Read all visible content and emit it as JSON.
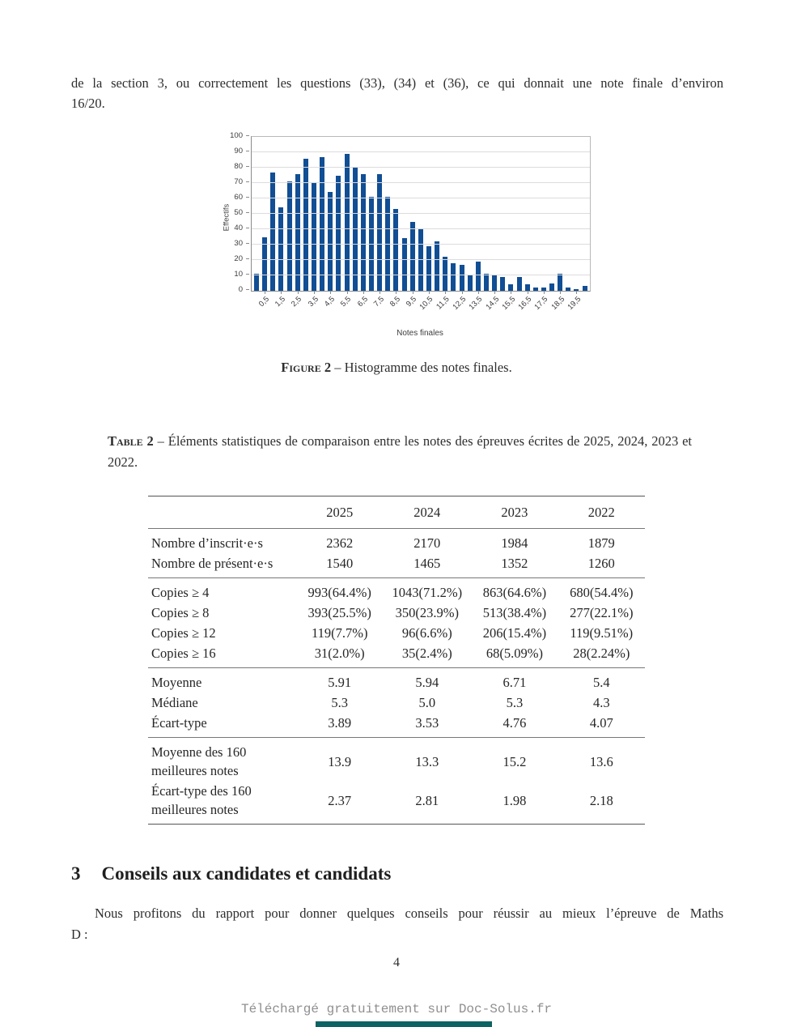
{
  "intro": {
    "lines": [
      "de la section 3, ou correctement les questions (33), (34) et (36), ce qui donnait une note finale d’environ",
      "16/20."
    ]
  },
  "chart_data": {
    "type": "bar",
    "title": "",
    "xlabel": "Notes finales",
    "ylabel": "Effectifs",
    "ylim": [
      0,
      100
    ],
    "ytick_step": 10,
    "grid": "horizontal",
    "bar_color": "#114e94",
    "categories": [
      "0",
      "0,5",
      "1",
      "1,5",
      "2",
      "2,5",
      "3",
      "3,5",
      "4",
      "4,5",
      "5",
      "5,5",
      "6",
      "6,5",
      "7",
      "7,5",
      "8",
      "8,5",
      "9",
      "9,5",
      "10",
      "10,5",
      "11",
      "11,5",
      "12",
      "12,5",
      "13",
      "13,5",
      "14",
      "14,5",
      "15",
      "15,5",
      "16",
      "16,5",
      "17",
      "17,5",
      "18",
      "18,5",
      "19",
      "19,5",
      "20"
    ],
    "values": [
      11,
      35,
      77,
      54,
      71,
      76,
      86,
      70,
      87,
      64,
      75,
      89,
      80,
      76,
      61,
      76,
      61,
      53,
      34,
      45,
      40,
      29,
      32,
      22,
      18,
      17,
      10,
      19,
      11,
      10,
      9,
      4,
      9,
      4,
      2,
      2,
      5,
      11,
      2,
      1,
      3
    ],
    "x_tick_labels_shown": [
      "0,5",
      "1,5",
      "2,5",
      "3,5",
      "4,5",
      "5,5",
      "6,5",
      "7,5",
      "8,5",
      "9,5",
      "10,5",
      "11,5",
      "12,5",
      "13,5",
      "14,5",
      "15,5",
      "16,5",
      "17,5",
      "18,5",
      "19,5"
    ]
  },
  "figure": {
    "label": "Figure 2",
    "caption": " – Histogramme des notes finales."
  },
  "table": {
    "label": "Table 2",
    "caption": " – Éléments statistiques de comparaison entre les notes des épreuves écrites de 2025, 2024, 2023 et 2022.",
    "columns": [
      "",
      "2025",
      "2024",
      "2023",
      "2022"
    ],
    "groups": [
      [
        [
          "Nombre d’inscrit·e·s",
          "2362",
          "2170",
          "1984",
          "1879"
        ],
        [
          "Nombre de présent·e·s",
          "1540",
          "1465",
          "1352",
          "1260"
        ]
      ],
      [
        [
          "Copies ≥ 4",
          "993(64.4%)",
          "1043(71.2%)",
          "863(64.6%)",
          "680(54.4%)"
        ],
        [
          "Copies ≥ 8",
          "393(25.5%)",
          "350(23.9%)",
          "513(38.4%)",
          "277(22.1%)"
        ],
        [
          "Copies ≥ 12",
          "119(7.7%)",
          "96(6.6%)",
          "206(15.4%)",
          "119(9.51%)"
        ],
        [
          "Copies ≥ 16",
          "31(2.0%)",
          "35(2.4%)",
          "68(5.09%)",
          "28(2.24%)"
        ]
      ],
      [
        [
          "Moyenne",
          "5.91",
          "5.94",
          "6.71",
          "5.4"
        ],
        [
          "Médiane",
          "5.3",
          "5.0",
          "5.3",
          "4.3"
        ],
        [
          "Écart-type",
          "3.89",
          "3.53",
          "4.76",
          "4.07"
        ]
      ],
      [
        [
          "Moyenne des 160 meilleures notes",
          "13.9",
          "13.3",
          "15.2",
          "13.6"
        ],
        [
          "Écart-type des 160 meilleures notes",
          "2.37",
          "2.81",
          "1.98",
          "2.18"
        ]
      ]
    ]
  },
  "section": {
    "number": "3",
    "title": "Conseils aux candidates et candidats",
    "lines": [
      "Nous profitons du rapport pour donner quelques conseils pour réussir au mieux l’épreuve de Maths",
      "D :"
    ]
  },
  "footer": {
    "page_number": "4",
    "download_note": "Téléchargé gratuitement sur Doc-Solus.fr",
    "brand_color": "#0c6363"
  }
}
